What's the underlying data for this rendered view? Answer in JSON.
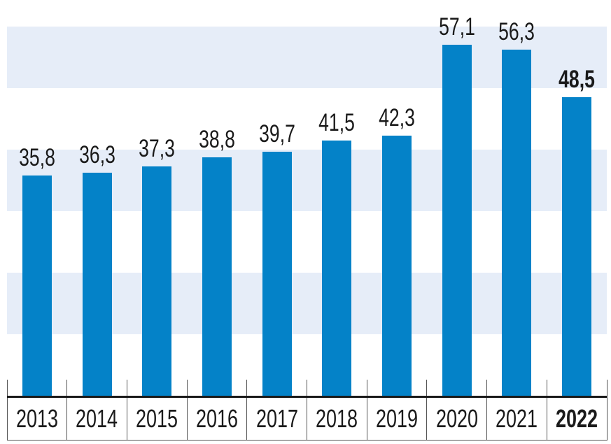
{
  "chart_data": {
    "type": "bar",
    "title": "",
    "xlabel": "",
    "ylabel": "",
    "categories": [
      "2013",
      "2014",
      "2015",
      "2016",
      "2017",
      "2018",
      "2019",
      "2020",
      "2021",
      "2022"
    ],
    "values": [
      35.8,
      36.3,
      37.3,
      38.8,
      39.7,
      41.5,
      42.3,
      57.1,
      56.3,
      48.5
    ],
    "value_labels": [
      "35,8",
      "36,3",
      "37,3",
      "38,8",
      "39,7",
      "41,5",
      "42,3",
      "57,1",
      "56,3",
      "48,5"
    ],
    "highlight_index": 9,
    "ylim": [
      0,
      60
    ],
    "stripe_bands": [
      [
        10,
        20
      ],
      [
        30,
        40
      ],
      [
        50,
        60
      ]
    ],
    "grid": "horizontal-stripes",
    "legend": "none",
    "colors": {
      "bar": "#0482c8",
      "stripe": "#e6edf8",
      "axis": "#1a1a1a",
      "separator": "#555555",
      "text": "#1a1a1a",
      "background": "#ffffff"
    }
  }
}
